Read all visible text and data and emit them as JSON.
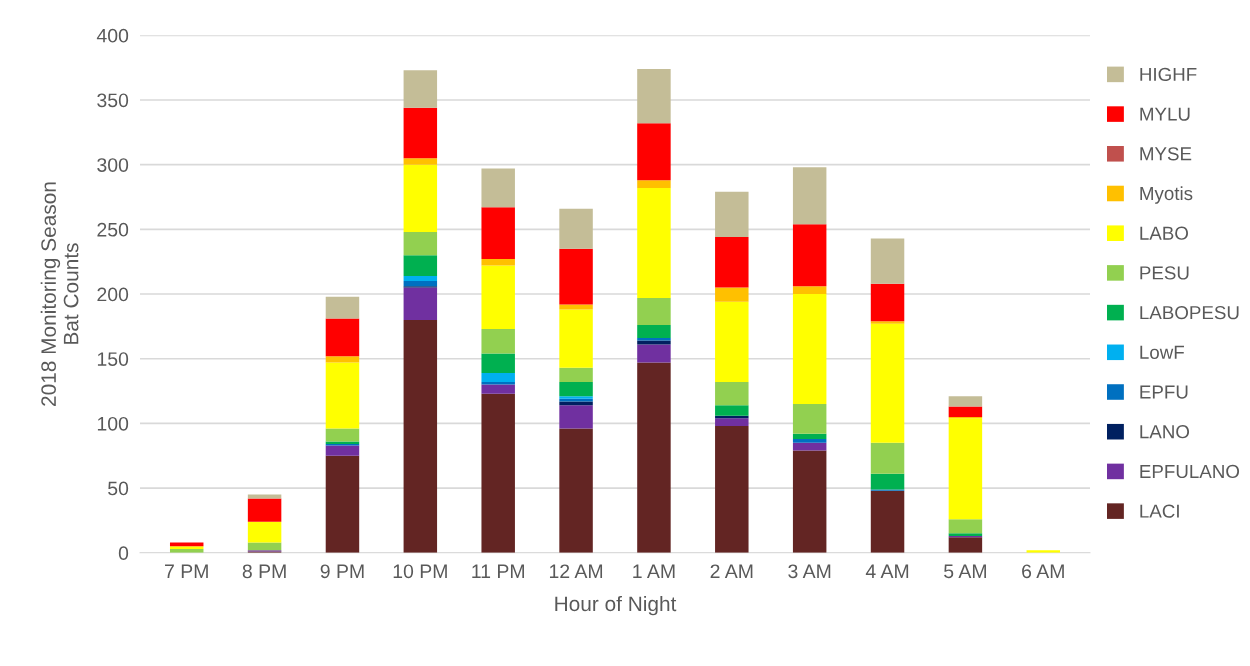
{
  "chart_data": {
    "type": "bar",
    "stacked": true,
    "xlabel": "Hour of Night",
    "ylabel": "2018 Monitoring Season\nBat Counts",
    "categories": [
      "7 PM",
      "8 PM",
      "9 PM",
      "10 PM",
      "11 PM",
      "12 AM",
      "1 AM",
      "2 AM",
      "3 AM",
      "4 AM",
      "5 AM",
      "6 AM"
    ],
    "series": [
      {
        "name": "LACI",
        "color": "#632523",
        "values": [
          0,
          1,
          75,
          180,
          123,
          96,
          147,
          98,
          79,
          48,
          12,
          0
        ]
      },
      {
        "name": "EPFULANO",
        "color": "#7030a0",
        "values": [
          0,
          1,
          8,
          25,
          7,
          18,
          14,
          6,
          6,
          0,
          1,
          0
        ]
      },
      {
        "name": "LANO",
        "color": "#002060",
        "values": [
          0,
          0,
          0,
          1,
          0,
          3,
          3,
          2,
          0,
          0,
          0,
          0
        ]
      },
      {
        "name": "EPFU",
        "color": "#0070c0",
        "values": [
          0,
          0,
          1,
          4,
          2,
          2,
          2,
          0,
          3,
          1,
          0,
          0
        ]
      },
      {
        "name": "LowF",
        "color": "#00b0f0",
        "values": [
          0,
          0,
          0,
          4,
          7,
          2,
          0,
          0,
          0,
          0,
          0,
          0
        ]
      },
      {
        "name": "LABOPESU",
        "color": "#00b050",
        "values": [
          0,
          0,
          2,
          16,
          15,
          11,
          10,
          8,
          4,
          12,
          2,
          0
        ]
      },
      {
        "name": "PESU",
        "color": "#92d050",
        "values": [
          3,
          6,
          10,
          18,
          19,
          11,
          21,
          18,
          23,
          24,
          11,
          0
        ]
      },
      {
        "name": "LABO",
        "color": "#ffff00",
        "values": [
          2,
          16,
          51,
          52,
          49,
          45,
          85,
          62,
          85,
          92,
          78,
          2
        ]
      },
      {
        "name": "Myotis",
        "color": "#ffc000",
        "values": [
          0,
          0,
          5,
          5,
          5,
          4,
          6,
          11,
          6,
          2,
          1,
          0
        ]
      },
      {
        "name": "MYSE",
        "color": "#c0504d",
        "values": [
          0,
          0,
          0,
          0,
          0,
          0,
          0,
          0,
          0,
          0,
          0,
          0
        ]
      },
      {
        "name": "MYLU",
        "color": "#ff0000",
        "values": [
          3,
          18,
          29,
          39,
          40,
          43,
          44,
          39,
          48,
          29,
          8,
          0
        ]
      },
      {
        "name": "HIGHF",
        "color": "#c4bd97",
        "values": [
          0,
          3,
          17,
          29,
          30,
          31,
          42,
          35,
          44,
          35,
          8,
          0
        ]
      }
    ],
    "ylim": [
      0,
      400
    ],
    "yticks": [
      0,
      50,
      100,
      150,
      200,
      250,
      300,
      350,
      400
    ],
    "grid": "y",
    "legend": "right"
  }
}
